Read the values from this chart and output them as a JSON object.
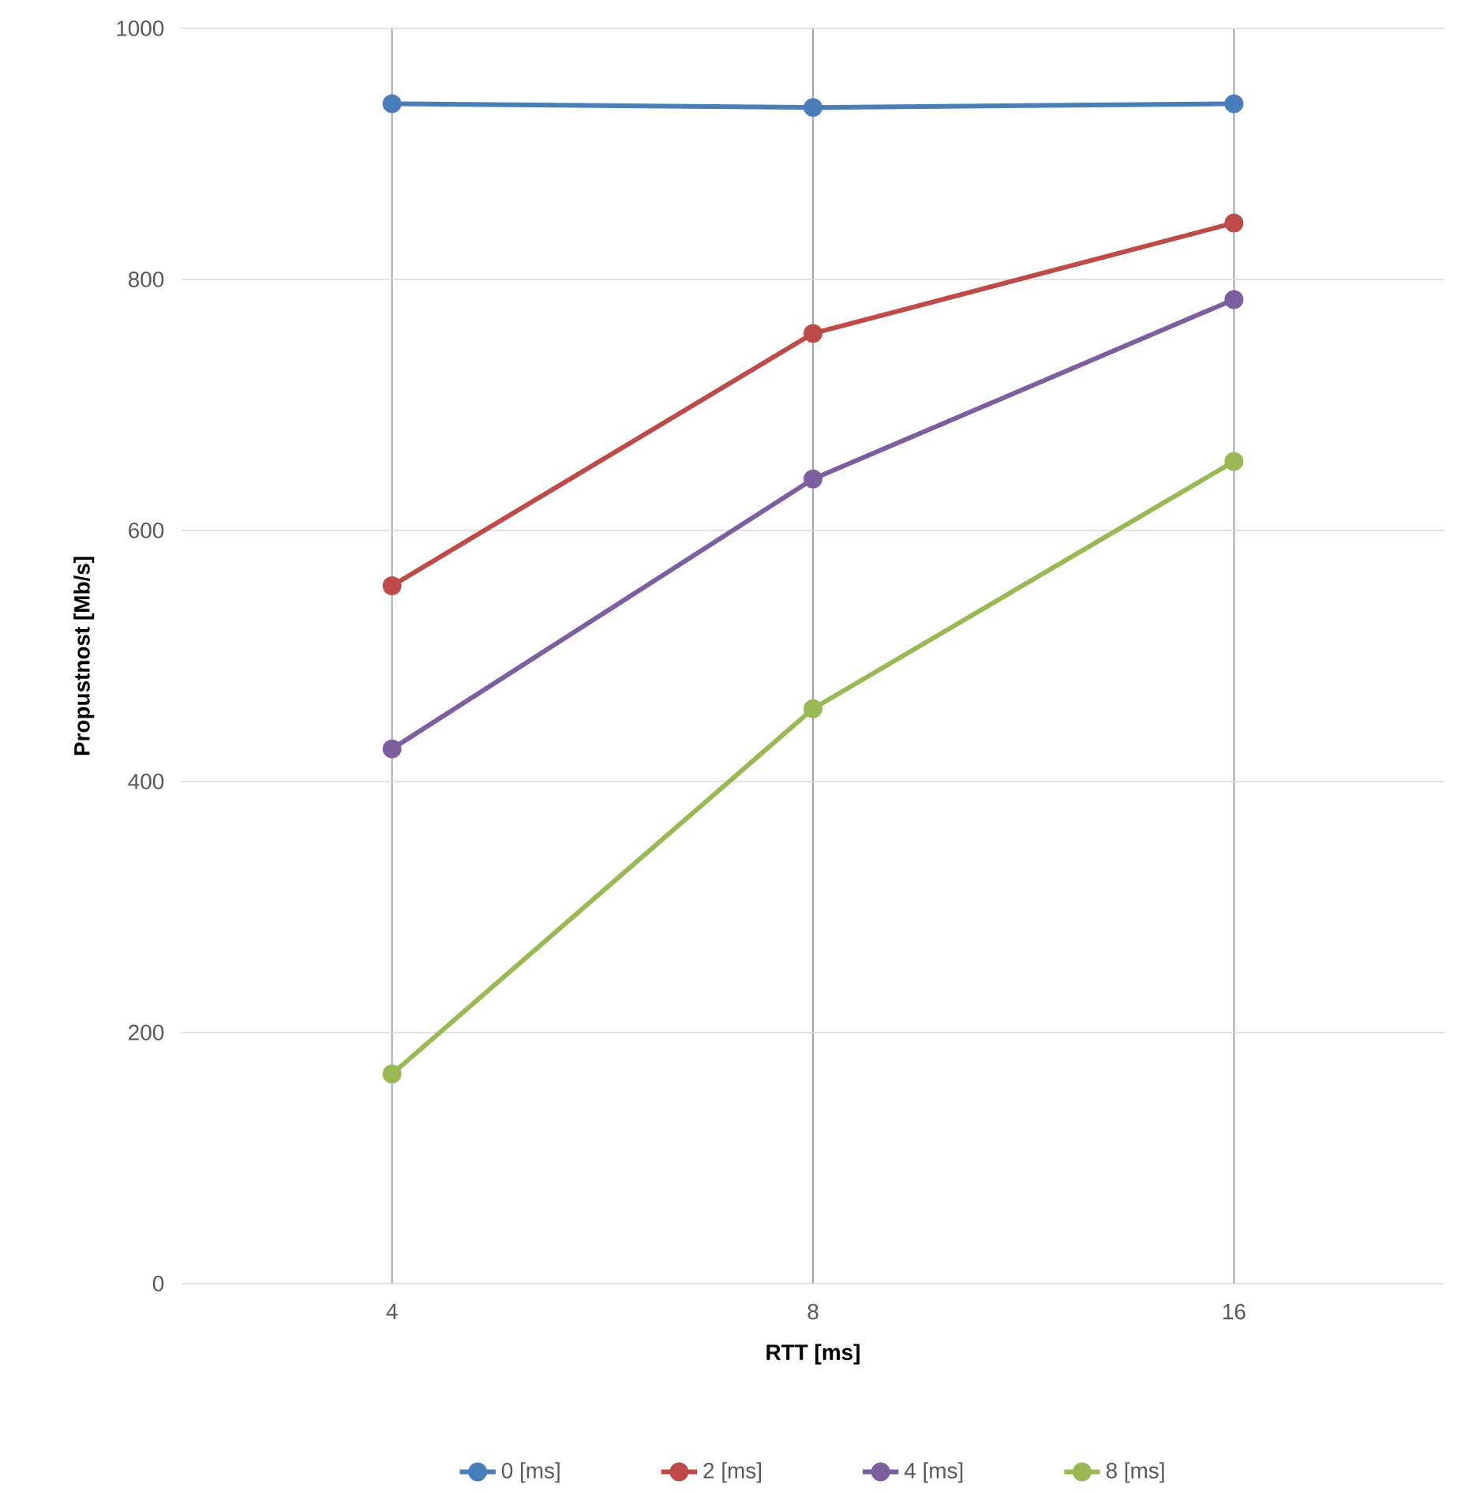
{
  "chart_data": {
    "type": "line",
    "xlabel": "RTT [ms]",
    "ylabel": "Propustnost [Mb/s]",
    "categories": [
      "4",
      "8",
      "16"
    ],
    "series": [
      {
        "name": "0 [ms]",
        "color": "#4a7ebb",
        "values": [
          940,
          937,
          940
        ]
      },
      {
        "name": "2 [ms]",
        "color": "#be4b48",
        "values": [
          556,
          757,
          845
        ]
      },
      {
        "name": "4 [ms]",
        "color": "#7d5fa0",
        "values": [
          426,
          641,
          784
        ]
      },
      {
        "name": "8 [ms]",
        "color": "#98b954",
        "values": [
          167,
          458,
          655
        ]
      }
    ],
    "ylim": [
      0,
      1000
    ],
    "yticks": [
      0,
      200,
      400,
      600,
      800,
      1000
    ],
    "grid": true,
    "legend": "bottom",
    "marker": "circle"
  }
}
